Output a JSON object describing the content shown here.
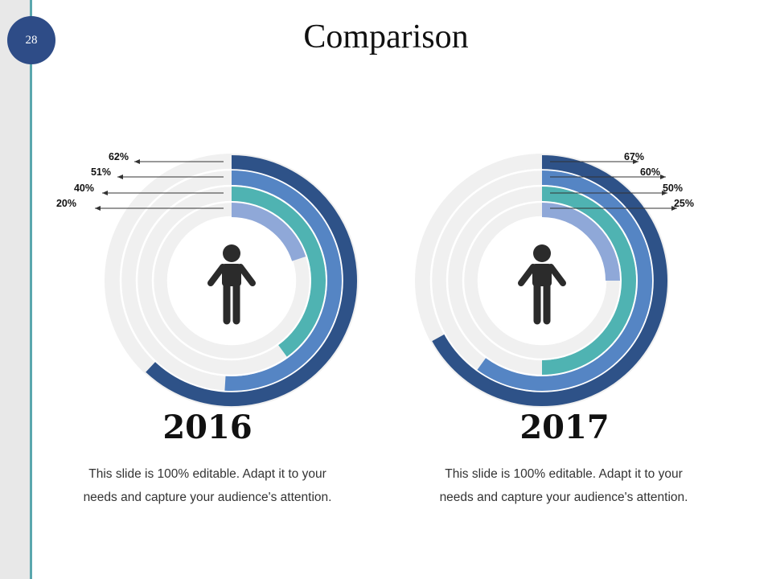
{
  "page_number": "28",
  "title": "Comparison",
  "colors": {
    "track": "#f0f0f0",
    "ring_outer": "#2e5288",
    "ring_second": "#5585c4",
    "ring_third": "#4fb3b2",
    "ring_inner": "#8fa8d8",
    "icon": "#2b2b2b",
    "accent_line": "#5aa7ad",
    "badge": "#2e4c87"
  },
  "chart_data": [
    {
      "type": "radial-bar",
      "title": "2016",
      "description": "This slide is 100% editable. Adapt it to your needs and capture your audience's attention.",
      "series": [
        {
          "label": "62%",
          "value": 62
        },
        {
          "label": "51%",
          "value": 51
        },
        {
          "label": "40%",
          "value": 40
        },
        {
          "label": "20%",
          "value": 20
        }
      ]
    },
    {
      "type": "radial-bar",
      "title": "2017",
      "description": "This slide is 100% editable. Adapt it to your needs and capture your audience's attention.",
      "series": [
        {
          "label": "67%",
          "value": 67
        },
        {
          "label": "60%",
          "value": 60
        },
        {
          "label": "50%",
          "value": 50
        },
        {
          "label": "25%",
          "value": 25
        }
      ]
    }
  ]
}
